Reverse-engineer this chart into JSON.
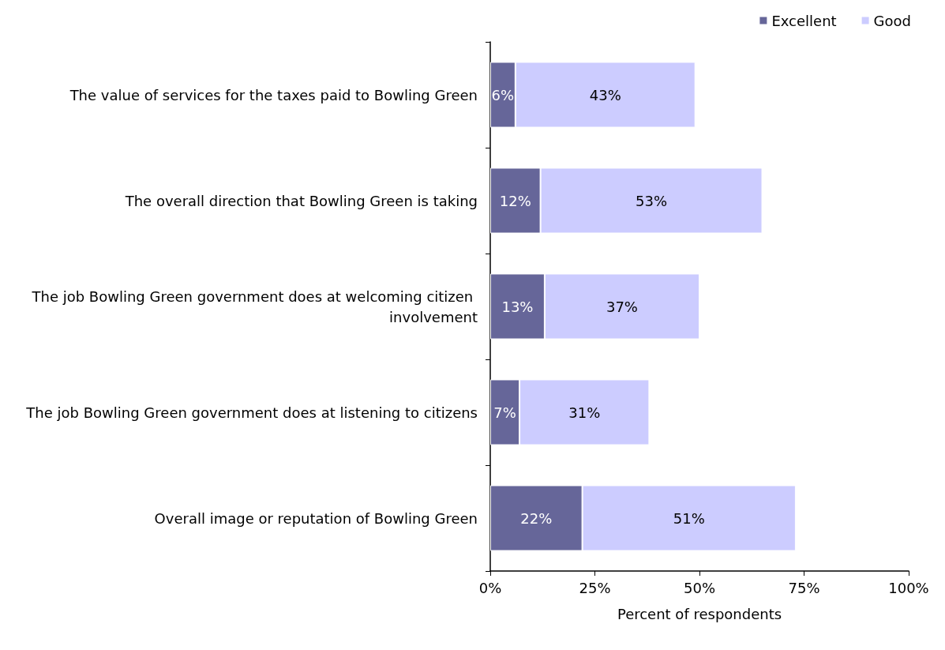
{
  "chart_data": {
    "type": "bar",
    "orientation": "horizontal",
    "stacked": true,
    "xlabel": "Percent of respondents",
    "categories": [
      "The value of services for the taxes paid to Bowling Green",
      "The overall direction that Bowling Green is taking",
      "The job Bowling Green government does at welcoming citizen involvement",
      "The job Bowling Green government does at listening to citizens",
      "Overall image or reputation of Bowling Green"
    ],
    "series": [
      {
        "name": "Excellent",
        "color": "#666699",
        "values": [
          6,
          12,
          13,
          7,
          22
        ],
        "value_labels": [
          "6%",
          "12%",
          "13%",
          "7%",
          "22%"
        ]
      },
      {
        "name": "Good",
        "color": "#ccccff",
        "values": [
          43,
          53,
          37,
          31,
          51
        ],
        "value_labels": [
          "43%",
          "53%",
          "37%",
          "31%",
          "51%"
        ]
      }
    ],
    "xlim": [
      0,
      100
    ],
    "xticks": [
      {
        "value": 0,
        "label": "0%"
      },
      {
        "value": 25,
        "label": "25%"
      },
      {
        "value": 50,
        "label": "50%"
      },
      {
        "value": 75,
        "label": "75%"
      },
      {
        "value": 100,
        "label": "100%"
      }
    ],
    "grid": false,
    "legend": "top right"
  }
}
